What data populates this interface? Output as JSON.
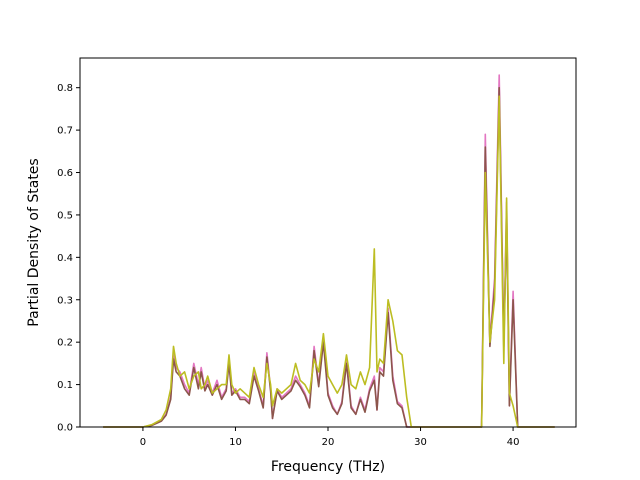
{
  "chart_data": {
    "type": "line",
    "title": "",
    "xlabel": "Frequency (THz)",
    "ylabel": "Partial Density of States",
    "xlim": [
      -6.8,
      46.8
    ],
    "ylim": [
      0.0,
      0.87
    ],
    "xticks": [
      0,
      10,
      20,
      30,
      40
    ],
    "yticks": [
      0.0,
      0.1,
      0.2,
      0.3,
      0.4,
      0.5,
      0.6,
      0.7,
      0.8
    ],
    "ytick_labels": [
      "0.0",
      "0.1",
      "0.2",
      "0.3",
      "0.4",
      "0.5",
      "0.6",
      "0.7",
      "0.8"
    ],
    "grid": false,
    "legend": "none",
    "series": [
      {
        "color": "#e377c2",
        "points": [
          [
            -4.3,
            0
          ],
          [
            0,
            0
          ],
          [
            1,
            0.005
          ],
          [
            2,
            0.015
          ],
          [
            2.5,
            0.03
          ],
          [
            3,
            0.07
          ],
          [
            3.3,
            0.17
          ],
          [
            3.6,
            0.14
          ],
          [
            4,
            0.13
          ],
          [
            4.5,
            0.1
          ],
          [
            5,
            0.08
          ],
          [
            5.5,
            0.15
          ],
          [
            6,
            0.1
          ],
          [
            6.3,
            0.14
          ],
          [
            6.7,
            0.09
          ],
          [
            7,
            0.11
          ],
          [
            7.5,
            0.08
          ],
          [
            8,
            0.11
          ],
          [
            8.5,
            0.07
          ],
          [
            9,
            0.09
          ],
          [
            9.3,
            0.16
          ],
          [
            9.6,
            0.08
          ],
          [
            10,
            0.09
          ],
          [
            10.5,
            0.07
          ],
          [
            11,
            0.07
          ],
          [
            11.5,
            0.06
          ],
          [
            12,
            0.13
          ],
          [
            12.5,
            0.09
          ],
          [
            13,
            0.05
          ],
          [
            13.4,
            0.175
          ],
          [
            13.8,
            0.09
          ],
          [
            14,
            0.02
          ],
          [
            14.5,
            0.09
          ],
          [
            15,
            0.07
          ],
          [
            15.5,
            0.08
          ],
          [
            16,
            0.09
          ],
          [
            16.5,
            0.12
          ],
          [
            17,
            0.1
          ],
          [
            17.5,
            0.08
          ],
          [
            18,
            0.05
          ],
          [
            18.5,
            0.19
          ],
          [
            19,
            0.1
          ],
          [
            19.5,
            0.21
          ],
          [
            20,
            0.08
          ],
          [
            20.5,
            0.05
          ],
          [
            21,
            0.03
          ],
          [
            21.5,
            0.06
          ],
          [
            22,
            0.16
          ],
          [
            22.5,
            0.05
          ],
          [
            23,
            0.03
          ],
          [
            23.5,
            0.07
          ],
          [
            24,
            0.04
          ],
          [
            24.5,
            0.09
          ],
          [
            25,
            0.12
          ],
          [
            25.3,
            0.04
          ],
          [
            25.6,
            0.14
          ],
          [
            26,
            0.13
          ],
          [
            26.5,
            0.28
          ],
          [
            27,
            0.12
          ],
          [
            27.5,
            0.06
          ],
          [
            28,
            0.05
          ],
          [
            28.5,
            0
          ],
          [
            36.6,
            0
          ],
          [
            37,
            0.69
          ],
          [
            37.5,
            0.2
          ],
          [
            38,
            0.35
          ],
          [
            38.5,
            0.83
          ],
          [
            39,
            0.2
          ],
          [
            39.3,
            0.53
          ],
          [
            39.6,
            0.05
          ],
          [
            40,
            0.32
          ],
          [
            40.5,
            0
          ],
          [
            44.5,
            0
          ]
        ]
      },
      {
        "color": "#8c564b",
        "points": [
          [
            -4.3,
            0
          ],
          [
            0,
            0
          ],
          [
            1,
            0.004
          ],
          [
            2,
            0.014
          ],
          [
            2.5,
            0.028
          ],
          [
            3,
            0.065
          ],
          [
            3.3,
            0.16
          ],
          [
            3.6,
            0.13
          ],
          [
            4,
            0.12
          ],
          [
            4.5,
            0.09
          ],
          [
            5,
            0.075
          ],
          [
            5.5,
            0.14
          ],
          [
            6,
            0.09
          ],
          [
            6.3,
            0.13
          ],
          [
            6.7,
            0.085
          ],
          [
            7,
            0.1
          ],
          [
            7.5,
            0.075
          ],
          [
            8,
            0.1
          ],
          [
            8.5,
            0.065
          ],
          [
            9,
            0.085
          ],
          [
            9.3,
            0.15
          ],
          [
            9.6,
            0.075
          ],
          [
            10,
            0.085
          ],
          [
            10.5,
            0.065
          ],
          [
            11,
            0.065
          ],
          [
            11.5,
            0.055
          ],
          [
            12,
            0.12
          ],
          [
            12.5,
            0.085
          ],
          [
            13,
            0.045
          ],
          [
            13.4,
            0.165
          ],
          [
            13.8,
            0.085
          ],
          [
            14,
            0.02
          ],
          [
            14.5,
            0.085
          ],
          [
            15,
            0.065
          ],
          [
            15.5,
            0.075
          ],
          [
            16,
            0.085
          ],
          [
            16.5,
            0.11
          ],
          [
            17,
            0.095
          ],
          [
            17.5,
            0.075
          ],
          [
            18,
            0.045
          ],
          [
            18.5,
            0.18
          ],
          [
            19,
            0.095
          ],
          [
            19.5,
            0.2
          ],
          [
            20,
            0.075
          ],
          [
            20.5,
            0.045
          ],
          [
            21,
            0.03
          ],
          [
            21.5,
            0.055
          ],
          [
            22,
            0.15
          ],
          [
            22.5,
            0.045
          ],
          [
            23,
            0.03
          ],
          [
            23.5,
            0.065
          ],
          [
            24,
            0.035
          ],
          [
            24.5,
            0.085
          ],
          [
            25,
            0.11
          ],
          [
            25.3,
            0.04
          ],
          [
            25.6,
            0.13
          ],
          [
            26,
            0.12
          ],
          [
            26.5,
            0.27
          ],
          [
            27,
            0.11
          ],
          [
            27.5,
            0.055
          ],
          [
            28,
            0.045
          ],
          [
            28.5,
            0
          ],
          [
            36.6,
            0
          ],
          [
            37,
            0.66
          ],
          [
            37.5,
            0.19
          ],
          [
            38,
            0.33
          ],
          [
            38.5,
            0.8
          ],
          [
            39,
            0.19
          ],
          [
            39.3,
            0.5
          ],
          [
            39.6,
            0.05
          ],
          [
            40,
            0.3
          ],
          [
            40.5,
            0
          ],
          [
            44.5,
            0
          ]
        ]
      },
      {
        "color": "#bcbd22",
        "points": [
          [
            -4.3,
            0
          ],
          [
            0,
            0
          ],
          [
            1,
            0.006
          ],
          [
            2,
            0.018
          ],
          [
            2.5,
            0.04
          ],
          [
            3,
            0.09
          ],
          [
            3.3,
            0.19
          ],
          [
            3.6,
            0.15
          ],
          [
            4,
            0.12
          ],
          [
            4.5,
            0.13
          ],
          [
            5,
            0.09
          ],
          [
            5.5,
            0.12
          ],
          [
            6,
            0.13
          ],
          [
            6.3,
            0.09
          ],
          [
            6.7,
            0.1
          ],
          [
            7,
            0.12
          ],
          [
            7.5,
            0.08
          ],
          [
            8,
            0.09
          ],
          [
            8.5,
            0.1
          ],
          [
            9,
            0.1
          ],
          [
            9.3,
            0.17
          ],
          [
            9.6,
            0.1
          ],
          [
            10,
            0.08
          ],
          [
            10.5,
            0.09
          ],
          [
            11,
            0.08
          ],
          [
            11.5,
            0.07
          ],
          [
            12,
            0.14
          ],
          [
            12.5,
            0.1
          ],
          [
            13,
            0.07
          ],
          [
            13.4,
            0.15
          ],
          [
            13.8,
            0.1
          ],
          [
            14,
            0.05
          ],
          [
            14.5,
            0.09
          ],
          [
            15,
            0.08
          ],
          [
            15.5,
            0.09
          ],
          [
            16,
            0.1
          ],
          [
            16.5,
            0.15
          ],
          [
            17,
            0.11
          ],
          [
            17.5,
            0.1
          ],
          [
            18,
            0.08
          ],
          [
            18.5,
            0.16
          ],
          [
            19,
            0.13
          ],
          [
            19.5,
            0.22
          ],
          [
            20,
            0.12
          ],
          [
            20.5,
            0.1
          ],
          [
            21,
            0.08
          ],
          [
            21.5,
            0.1
          ],
          [
            22,
            0.17
          ],
          [
            22.5,
            0.1
          ],
          [
            23,
            0.09
          ],
          [
            23.5,
            0.13
          ],
          [
            24,
            0.1
          ],
          [
            24.5,
            0.14
          ],
          [
            25,
            0.42
          ],
          [
            25.3,
            0.13
          ],
          [
            25.6,
            0.16
          ],
          [
            26,
            0.15
          ],
          [
            26.5,
            0.3
          ],
          [
            27,
            0.25
          ],
          [
            27.5,
            0.18
          ],
          [
            28,
            0.17
          ],
          [
            28.5,
            0.07
          ],
          [
            29,
            0
          ],
          [
            36.6,
            0
          ],
          [
            37,
            0.6
          ],
          [
            37.5,
            0.2
          ],
          [
            38,
            0.3
          ],
          [
            38.5,
            0.78
          ],
          [
            39,
            0.15
          ],
          [
            39.3,
            0.54
          ],
          [
            39.6,
            0.08
          ],
          [
            40,
            0.05
          ],
          [
            40.5,
            0
          ],
          [
            44.5,
            0
          ]
        ]
      }
    ]
  }
}
